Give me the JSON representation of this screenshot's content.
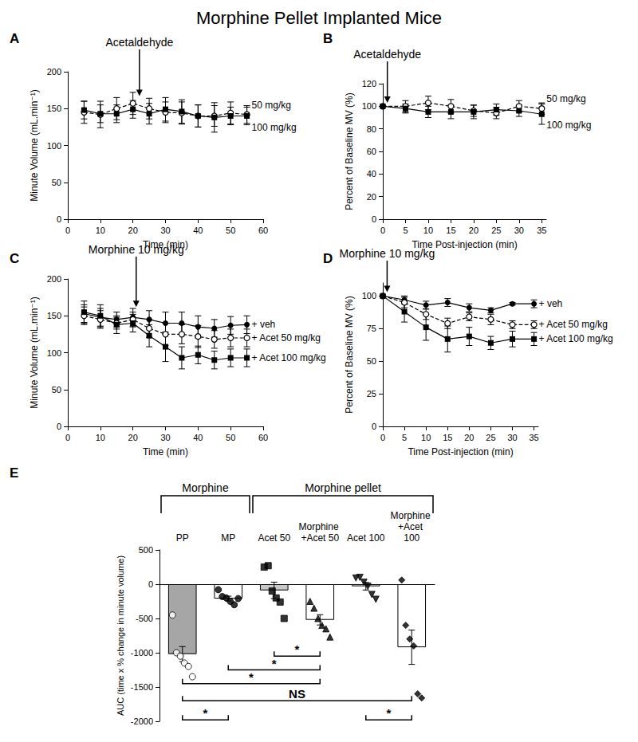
{
  "title": "Morphine Pellet Implanted Mice",
  "chart_data": [
    {
      "type": "line",
      "title": "A",
      "xlabel": "Time (min)",
      "ylabel": "Minute Volume (mL.min⁻¹)",
      "x": [
        5,
        10,
        15,
        20,
        25,
        30,
        35,
        40,
        45,
        50,
        55
      ],
      "xlim": [
        0,
        60
      ],
      "xticks": [
        0,
        10,
        20,
        30,
        40,
        50,
        60
      ],
      "ylim": [
        0,
        200
      ],
      "yticks": [
        0,
        50,
        100,
        150,
        200
      ],
      "annotations": [
        {
          "text": "Acetaldehyde",
          "x": 22,
          "y": 167
        }
      ],
      "series": [
        {
          "name": "50 mg/kg",
          "color": "#000000",
          "marker": "circle_open",
          "line_style": "dashed",
          "values": [
            145,
            142,
            150,
            157,
            150,
            145,
            144,
            140,
            140,
            144,
            142
          ],
          "errors": [
            15,
            18,
            15,
            15,
            14,
            14,
            15,
            15,
            14,
            15,
            12
          ]
        },
        {
          "name": "100 mg/kg",
          "color": "#000000",
          "marker": "square",
          "line_style": "solid",
          "values": [
            148,
            143,
            143,
            149,
            143,
            149,
            146,
            140,
            138,
            140,
            140
          ],
          "errors": [
            12,
            12,
            12,
            12,
            14,
            16,
            16,
            15,
            20,
            12,
            12
          ]
        }
      ]
    },
    {
      "type": "line",
      "title": "B",
      "xlabel": "Time Post-injection (min)",
      "ylabel": "Percent of Baseline MV (%)",
      "x": [
        0,
        5,
        10,
        15,
        20,
        25,
        30,
        35
      ],
      "xlim": [
        0,
        36
      ],
      "xticks": [
        0,
        5,
        10,
        15,
        20,
        25,
        30,
        35
      ],
      "ylim": [
        0,
        120
      ],
      "yticks": [
        0,
        20,
        40,
        60,
        80,
        100,
        120
      ],
      "annotations": [
        {
          "text": "Acetaldehyde",
          "x": 1,
          "y": 103
        }
      ],
      "series": [
        {
          "name": "50 mg/kg",
          "color": "#000000",
          "marker": "circle_open",
          "line_style": "dashed",
          "values": [
            100,
            100,
            103,
            100,
            96,
            94,
            100,
            98
          ],
          "errors": [
            0,
            5,
            6,
            6,
            5,
            5,
            5,
            5
          ]
        },
        {
          "name": "100 mg/kg",
          "color": "#000000",
          "marker": "square",
          "line_style": "solid",
          "values": [
            100,
            98,
            95,
            95,
            95,
            97,
            96,
            93
          ],
          "errors": [
            0,
            4,
            5,
            6,
            6,
            5,
            5,
            9
          ]
        }
      ]
    },
    {
      "type": "line",
      "title": "C",
      "xlabel": "Time (min)",
      "ylabel": "Minute Volume (mL.min⁻¹)",
      "x": [
        5,
        10,
        15,
        20,
        25,
        30,
        35,
        40,
        45,
        50,
        55
      ],
      "xlim": [
        0,
        60
      ],
      "xticks": [
        0,
        10,
        20,
        30,
        40,
        50,
        60
      ],
      "ylim": [
        0,
        200
      ],
      "yticks": [
        0,
        50,
        100,
        150,
        200
      ],
      "annotations": [
        {
          "text": "Morphine 10 mg/kg",
          "x": 21,
          "y": 162
        }
      ],
      "series": [
        {
          "name": "+ veh",
          "color": "#000000",
          "marker": "circle",
          "line_style": "solid",
          "values": [
            153,
            148,
            145,
            148,
            145,
            140,
            140,
            135,
            133,
            137,
            138
          ],
          "errors": [
            12,
            12,
            10,
            12,
            12,
            15,
            15,
            15,
            12,
            12,
            12
          ]
        },
        {
          "name": "+ Acet 50 mg/kg",
          "color": "#000000",
          "marker": "circle_open",
          "line_style": "dashed",
          "values": [
            150,
            145,
            140,
            145,
            133,
            125,
            125,
            122,
            118,
            120,
            120
          ],
          "errors": [
            12,
            12,
            8,
            10,
            12,
            15,
            13,
            15,
            12,
            12,
            12
          ]
        },
        {
          "name": "+ Acet 100 mg/kg",
          "color": "#000000",
          "marker": "square",
          "line_style": "solid",
          "values": [
            155,
            150,
            138,
            140,
            123,
            108,
            93,
            97,
            90,
            93,
            93
          ],
          "errors": [
            15,
            15,
            12,
            12,
            15,
            20,
            15,
            12,
            12,
            12,
            12
          ]
        }
      ]
    },
    {
      "type": "line",
      "title": "D",
      "xlabel": "Time Post-injection (min)",
      "ylabel": "Percent of Baseline MV (%)",
      "x": [
        0,
        5,
        10,
        15,
        20,
        25,
        30,
        35
      ],
      "xlim": [
        0,
        36
      ],
      "xticks": [
        0,
        5,
        10,
        15,
        20,
        25,
        30,
        35
      ],
      "ylim": [
        0,
        110
      ],
      "yticks": [
        0,
        25,
        50,
        75,
        100
      ],
      "annotations": [
        {
          "text": "Morphine 10 mg/kg",
          "x": 1,
          "y": 103
        }
      ],
      "series": [
        {
          "name": "+ veh",
          "color": "#000000",
          "marker": "circle",
          "line_style": "solid",
          "values": [
            100,
            97,
            93,
            95,
            91,
            89,
            94,
            94
          ],
          "errors": [
            0,
            3,
            3,
            3,
            3,
            2,
            1,
            3
          ]
        },
        {
          "name": "+ Acet 50 mg/kg",
          "color": "#000000",
          "marker": "circle_open",
          "line_style": "dashed",
          "values": [
            100,
            95,
            86,
            79,
            84,
            82,
            78,
            78
          ],
          "errors": [
            0,
            4,
            4,
            4,
            3,
            4,
            3,
            3
          ]
        },
        {
          "name": "+ Acet 100 mg/kg",
          "color": "#000000",
          "marker": "square",
          "line_style": "solid",
          "values": [
            100,
            88,
            76,
            67,
            69,
            64,
            67,
            67
          ],
          "errors": [
            0,
            8,
            10,
            10,
            7,
            5,
            6,
            5
          ]
        }
      ]
    },
    {
      "type": "bar",
      "title": "E",
      "ylabel": "AUC (time x % change in minute volume)",
      "categories": [
        "PP",
        "MP",
        "Acet 50",
        "Morphine +Acet 50",
        "Acet 100",
        "Morphine +Acet 100"
      ],
      "values": [
        -1020,
        -210,
        -90,
        -520,
        -30,
        -920
      ],
      "errors": [
        110,
        35,
        120,
        75,
        55,
        250
      ],
      "colors": [
        "#a6a6a6",
        "#ffffff",
        "#c8c8c8",
        "#ffffff",
        "#ffffff",
        "#ffffff"
      ],
      "points": [
        [
          -450,
          -1000,
          -1050,
          -1150,
          -1200,
          -1350
        ],
        [
          -80,
          -180,
          -200,
          -250,
          -300,
          -210
        ],
        [
          250,
          270,
          -100,
          -200,
          -260,
          -500
        ],
        [
          -250,
          -350,
          -500,
          -600,
          -650,
          -770
        ],
        [
          90,
          100,
          30,
          -30,
          -150,
          -220
        ],
        [
          60,
          -600,
          -800,
          -900,
          -1600,
          -1660
        ]
      ],
      "ylim": [
        -2000,
        500
      ],
      "yticks": [
        -2000,
        -1500,
        -1000,
        -500,
        0,
        500
      ],
      "groups": [
        {
          "text": "Morphine",
          "from": 0,
          "to": 1
        },
        {
          "text": "Morphine pellet",
          "from": 2,
          "to": 5
        }
      ],
      "comparisons": [
        {
          "from": 2,
          "to": 3,
          "y": -1050,
          "text": "*"
        },
        {
          "from": 1,
          "to": 3,
          "y": -1250,
          "text": "*"
        },
        {
          "from": 0,
          "to": 3,
          "y": -1450,
          "text": "*"
        },
        {
          "from": 0,
          "to": 5,
          "y": -1700,
          "text": "NS"
        },
        {
          "from": 0,
          "to": 1,
          "y": -1980,
          "text": "*"
        },
        {
          "from": 4,
          "to": 5,
          "y": -1980,
          "text": "*"
        }
      ]
    }
  ]
}
